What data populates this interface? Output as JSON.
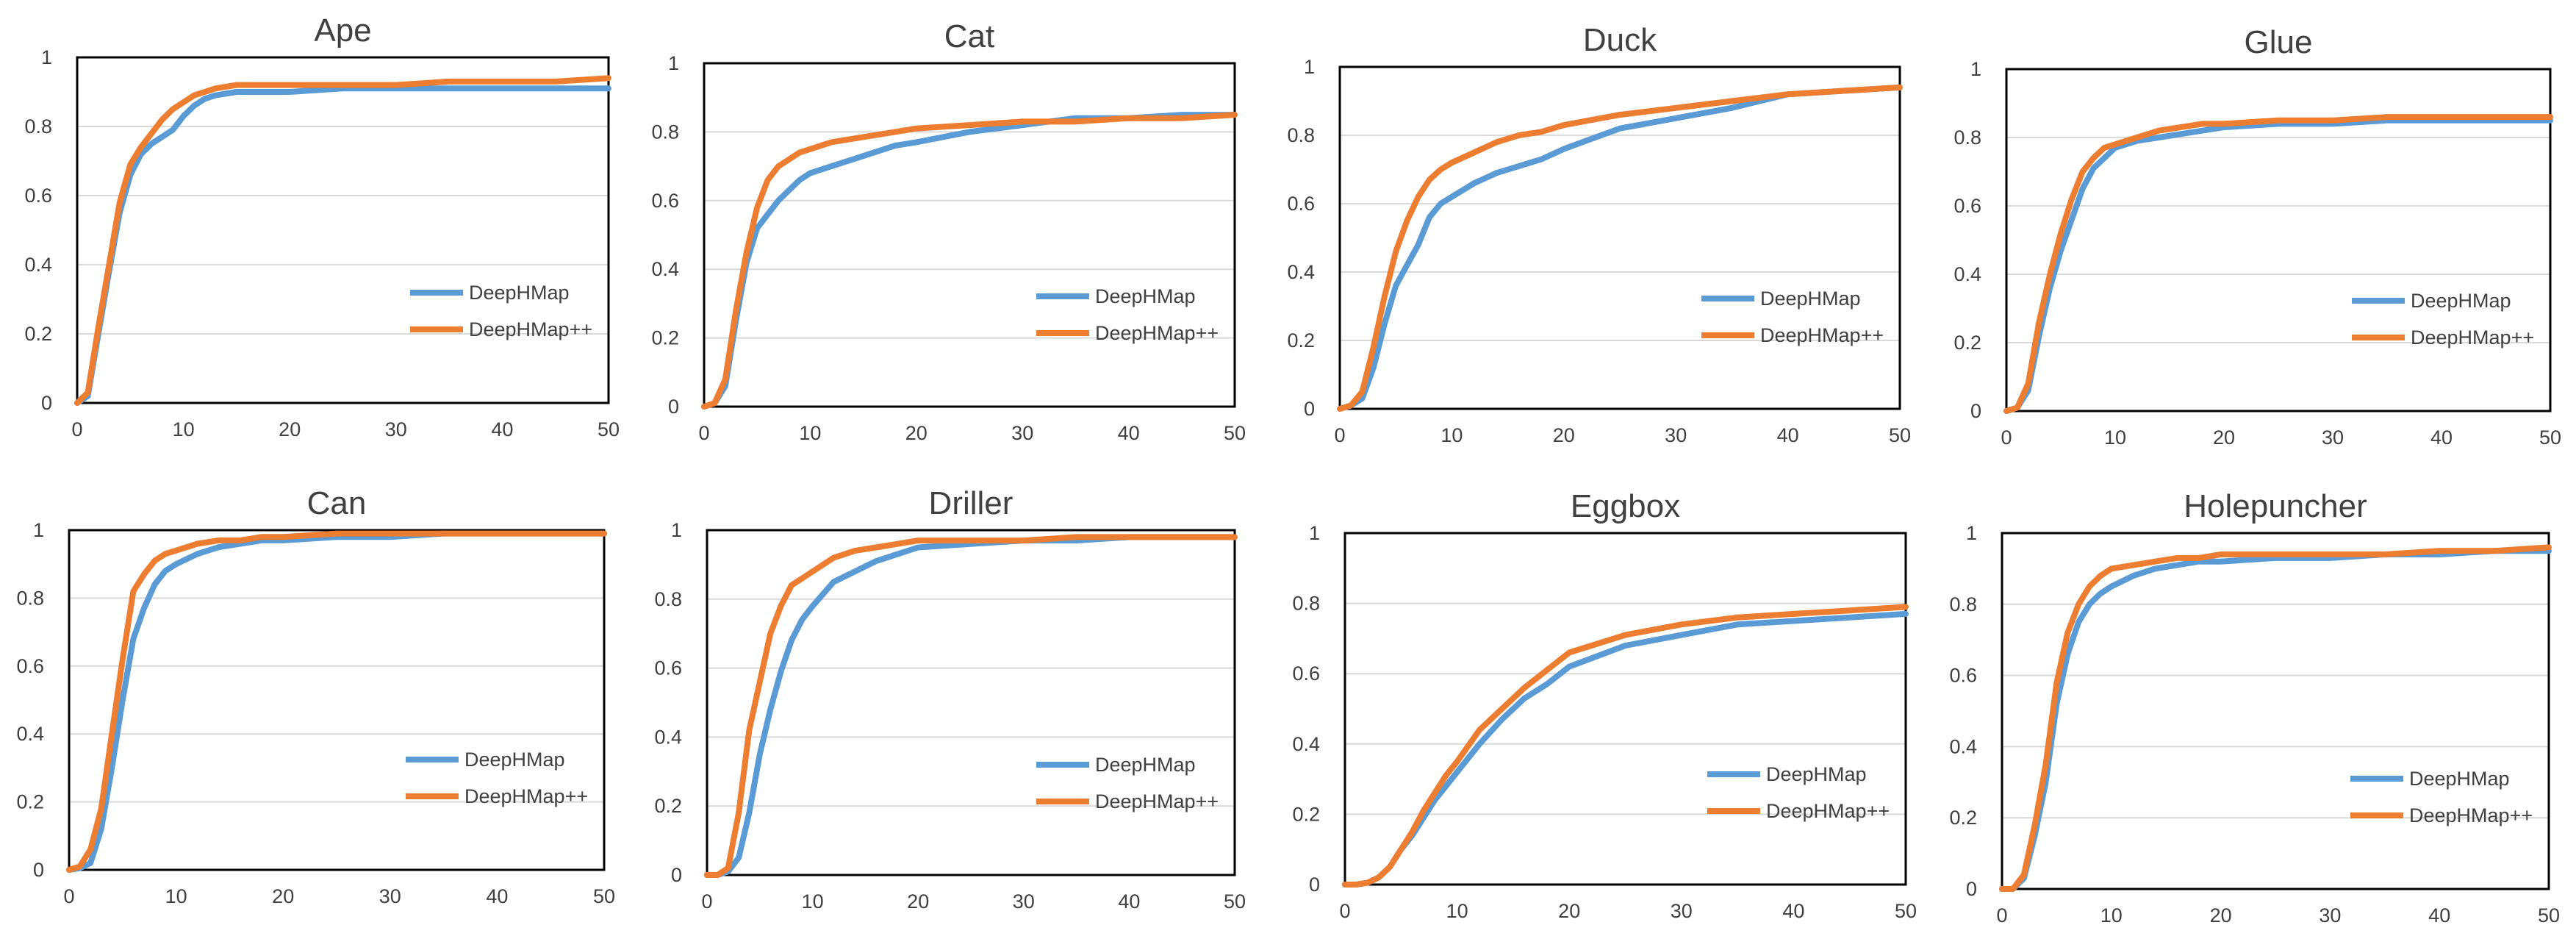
{
  "colors": {
    "deephmap": "#5b9bd5",
    "deephmap_pp": "#ed7d31"
  },
  "chart_data": [
    {
      "type": "line",
      "title": "Ape",
      "x": [
        0,
        1,
        2,
        3,
        4,
        5,
        6,
        7,
        8,
        9,
        10,
        11,
        12,
        13,
        15,
        20,
        25,
        30,
        35,
        40,
        45,
        50
      ],
      "series": [
        {
          "name": "DeepHMap",
          "values": [
            0,
            0.02,
            0.2,
            0.38,
            0.55,
            0.66,
            0.72,
            0.75,
            0.77,
            0.79,
            0.83,
            0.86,
            0.88,
            0.89,
            0.9,
            0.9,
            0.91,
            0.91,
            0.91,
            0.91,
            0.91,
            0.91
          ]
        },
        {
          "name": "DeepHMap++",
          "values": [
            0,
            0.03,
            0.22,
            0.4,
            0.58,
            0.69,
            0.74,
            0.78,
            0.82,
            0.85,
            0.87,
            0.89,
            0.9,
            0.91,
            0.92,
            0.92,
            0.92,
            0.92,
            0.93,
            0.93,
            0.93,
            0.94
          ]
        }
      ],
      "xlim": [
        0,
        50
      ],
      "ylim": [
        0,
        1
      ],
      "xticks": [
        "0",
        "10",
        "20",
        "30",
        "40",
        "50"
      ],
      "yticks": [
        "0",
        "0.2",
        "0.4",
        "0.6",
        "0.8",
        "1"
      ],
      "legend": "bottom-right"
    },
    {
      "type": "line",
      "title": "Cat",
      "x": [
        0,
        1,
        2,
        3,
        4,
        5,
        6,
        7,
        8,
        9,
        10,
        12,
        14,
        16,
        18,
        20,
        25,
        30,
        35,
        40,
        45,
        50
      ],
      "series": [
        {
          "name": "DeepHMap",
          "values": [
            0,
            0.01,
            0.06,
            0.25,
            0.42,
            0.52,
            0.56,
            0.6,
            0.63,
            0.66,
            0.68,
            0.7,
            0.72,
            0.74,
            0.76,
            0.77,
            0.8,
            0.82,
            0.84,
            0.84,
            0.85,
            0.85
          ]
        },
        {
          "name": "DeepHMap++",
          "values": [
            0,
            0.01,
            0.08,
            0.28,
            0.45,
            0.58,
            0.66,
            0.7,
            0.72,
            0.74,
            0.75,
            0.77,
            0.78,
            0.79,
            0.8,
            0.81,
            0.82,
            0.83,
            0.83,
            0.84,
            0.84,
            0.85
          ]
        }
      ],
      "xlim": [
        0,
        50
      ],
      "ylim": [
        0,
        1
      ],
      "xticks": [
        "0",
        "10",
        "20",
        "30",
        "40",
        "50"
      ],
      "yticks": [
        "0",
        "0.2",
        "0.4",
        "0.6",
        "0.8",
        "1"
      ],
      "legend": "bottom-right"
    },
    {
      "type": "line",
      "title": "Duck",
      "x": [
        0,
        1,
        2,
        3,
        4,
        5,
        6,
        7,
        8,
        9,
        10,
        12,
        14,
        16,
        18,
        20,
        25,
        30,
        35,
        40,
        45,
        50
      ],
      "series": [
        {
          "name": "DeepHMap",
          "values": [
            0,
            0.01,
            0.03,
            0.12,
            0.25,
            0.36,
            0.42,
            0.48,
            0.56,
            0.6,
            0.62,
            0.66,
            0.69,
            0.71,
            0.73,
            0.76,
            0.82,
            0.85,
            0.88,
            0.92,
            0.93,
            0.94
          ]
        },
        {
          "name": "DeepHMap++",
          "values": [
            0,
            0.01,
            0.05,
            0.18,
            0.33,
            0.46,
            0.55,
            0.62,
            0.67,
            0.7,
            0.72,
            0.75,
            0.78,
            0.8,
            0.81,
            0.83,
            0.86,
            0.88,
            0.9,
            0.92,
            0.93,
            0.94
          ]
        }
      ],
      "xlim": [
        0,
        50
      ],
      "ylim": [
        0,
        1
      ],
      "xticks": [
        "0",
        "10",
        "20",
        "30",
        "40",
        "50"
      ],
      "yticks": [
        "0",
        "0.2",
        "0.4",
        "0.6",
        "0.8",
        "1"
      ],
      "legend": "bottom-right"
    },
    {
      "type": "line",
      "title": "Glue",
      "x": [
        0,
        1,
        2,
        3,
        4,
        5,
        6,
        7,
        8,
        9,
        10,
        12,
        14,
        16,
        18,
        20,
        25,
        30,
        35,
        40,
        45,
        50
      ],
      "series": [
        {
          "name": "DeepHMap",
          "values": [
            0,
            0.01,
            0.06,
            0.22,
            0.36,
            0.47,
            0.56,
            0.65,
            0.71,
            0.74,
            0.77,
            0.79,
            0.8,
            0.81,
            0.82,
            0.83,
            0.84,
            0.84,
            0.85,
            0.85,
            0.85,
            0.85
          ]
        },
        {
          "name": "DeepHMap++",
          "values": [
            0,
            0.01,
            0.08,
            0.26,
            0.4,
            0.52,
            0.62,
            0.7,
            0.74,
            0.77,
            0.78,
            0.8,
            0.82,
            0.83,
            0.84,
            0.84,
            0.85,
            0.85,
            0.86,
            0.86,
            0.86,
            0.86
          ]
        }
      ],
      "xlim": [
        0,
        50
      ],
      "ylim": [
        0,
        1
      ],
      "xticks": [
        "0",
        "10",
        "20",
        "30",
        "40",
        "50"
      ],
      "yticks": [
        "0",
        "0.2",
        "0.4",
        "0.6",
        "0.8",
        "1"
      ],
      "legend": "bottom-right"
    },
    {
      "type": "line",
      "title": "Can",
      "x": [
        0,
        1,
        2,
        3,
        4,
        5,
        6,
        7,
        8,
        9,
        10,
        12,
        14,
        16,
        18,
        20,
        25,
        30,
        35,
        40,
        45,
        50
      ],
      "series": [
        {
          "name": "DeepHMap",
          "values": [
            0,
            0.005,
            0.02,
            0.12,
            0.3,
            0.5,
            0.68,
            0.77,
            0.84,
            0.88,
            0.9,
            0.93,
            0.95,
            0.96,
            0.97,
            0.97,
            0.98,
            0.98,
            0.99,
            0.99,
            0.99,
            0.99
          ]
        },
        {
          "name": "DeepHMap++",
          "values": [
            0,
            0.01,
            0.06,
            0.18,
            0.4,
            0.62,
            0.82,
            0.87,
            0.91,
            0.93,
            0.94,
            0.96,
            0.97,
            0.97,
            0.98,
            0.98,
            0.99,
            0.99,
            0.99,
            0.99,
            0.99,
            0.99
          ]
        }
      ],
      "xlim": [
        0,
        50
      ],
      "ylim": [
        0,
        1
      ],
      "xticks": [
        "0",
        "10",
        "20",
        "30",
        "40",
        "50"
      ],
      "yticks": [
        "0",
        "0.2",
        "0.4",
        "0.6",
        "0.8",
        "1"
      ],
      "legend": "bottom-right"
    },
    {
      "type": "line",
      "title": "Driller",
      "x": [
        0,
        1,
        2,
        3,
        4,
        5,
        6,
        7,
        8,
        9,
        10,
        12,
        14,
        16,
        18,
        20,
        25,
        30,
        35,
        40,
        45,
        50
      ],
      "series": [
        {
          "name": "DeepHMap",
          "values": [
            0,
            0,
            0.01,
            0.05,
            0.18,
            0.35,
            0.48,
            0.59,
            0.68,
            0.74,
            0.78,
            0.85,
            0.88,
            0.91,
            0.93,
            0.95,
            0.96,
            0.97,
            0.97,
            0.98,
            0.98,
            0.98
          ]
        },
        {
          "name": "DeepHMap++",
          "values": [
            0,
            0,
            0.02,
            0.18,
            0.42,
            0.56,
            0.7,
            0.78,
            0.84,
            0.86,
            0.88,
            0.92,
            0.94,
            0.95,
            0.96,
            0.97,
            0.97,
            0.97,
            0.98,
            0.98,
            0.98,
            0.98
          ]
        }
      ],
      "xlim": [
        0,
        50
      ],
      "ylim": [
        0,
        1
      ],
      "xticks": [
        "0",
        "10",
        "20",
        "30",
        "40",
        "50"
      ],
      "yticks": [
        "0",
        "0.2",
        "0.4",
        "0.6",
        "0.8",
        "1"
      ],
      "legend": "bottom-right"
    },
    {
      "type": "line",
      "title": "Eggbox",
      "x": [
        0,
        1,
        2,
        3,
        4,
        5,
        6,
        7,
        8,
        9,
        10,
        12,
        14,
        16,
        18,
        20,
        25,
        30,
        35,
        40,
        45,
        50
      ],
      "series": [
        {
          "name": "DeepHMap",
          "values": [
            0,
            0,
            0.005,
            0.02,
            0.05,
            0.1,
            0.14,
            0.19,
            0.24,
            0.28,
            0.32,
            0.4,
            0.47,
            0.53,
            0.57,
            0.62,
            0.68,
            0.71,
            0.74,
            0.75,
            0.76,
            0.77
          ]
        },
        {
          "name": "DeepHMap++",
          "values": [
            0,
            0,
            0.005,
            0.02,
            0.05,
            0.1,
            0.15,
            0.21,
            0.26,
            0.31,
            0.35,
            0.44,
            0.5,
            0.56,
            0.61,
            0.66,
            0.71,
            0.74,
            0.76,
            0.77,
            0.78,
            0.79
          ]
        }
      ],
      "xlim": [
        0,
        50
      ],
      "ylim": [
        0,
        1
      ],
      "xticks": [
        "0",
        "10",
        "20",
        "30",
        "40",
        "50"
      ],
      "yticks": [
        "0",
        "0.2",
        "0.4",
        "0.6",
        "0.8",
        "1"
      ],
      "legend": "bottom-right"
    },
    {
      "type": "line",
      "title": "Holepuncher",
      "x": [
        0,
        1,
        2,
        3,
        4,
        5,
        6,
        7,
        8,
        9,
        10,
        12,
        14,
        16,
        18,
        20,
        25,
        30,
        35,
        40,
        45,
        50
      ],
      "series": [
        {
          "name": "DeepHMap",
          "values": [
            0,
            0,
            0.03,
            0.15,
            0.3,
            0.52,
            0.66,
            0.75,
            0.8,
            0.83,
            0.85,
            0.88,
            0.9,
            0.91,
            0.92,
            0.92,
            0.93,
            0.93,
            0.94,
            0.94,
            0.95,
            0.95
          ]
        },
        {
          "name": "DeepHMap++",
          "values": [
            0,
            0,
            0.04,
            0.18,
            0.35,
            0.58,
            0.72,
            0.8,
            0.85,
            0.88,
            0.9,
            0.91,
            0.92,
            0.93,
            0.93,
            0.94,
            0.94,
            0.94,
            0.94,
            0.95,
            0.95,
            0.96
          ]
        }
      ],
      "xlim": [
        0,
        50
      ],
      "ylim": [
        0,
        1
      ],
      "xticks": [
        "0",
        "10",
        "20",
        "30",
        "40",
        "50"
      ],
      "yticks": [
        "0",
        "0.2",
        "0.4",
        "0.6",
        "0.8",
        "1"
      ],
      "legend": "bottom-right"
    }
  ]
}
